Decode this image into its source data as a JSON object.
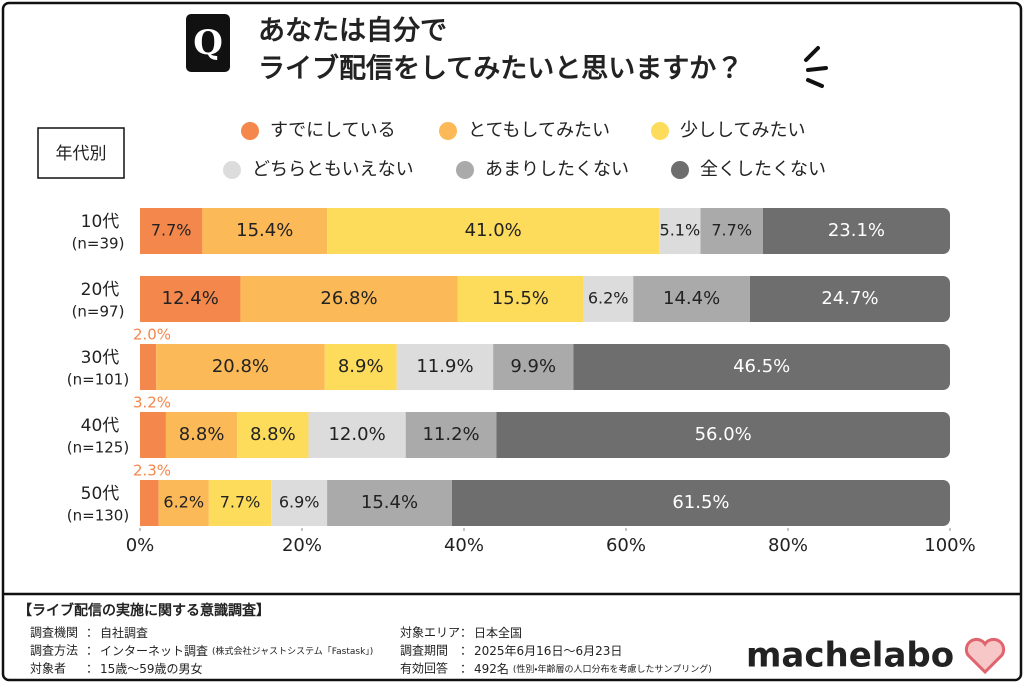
{
  "chart_data": {
    "type": "stacked-bar-horizontal",
    "question_mark": "Q",
    "title_lines": [
      "あなたは自分で",
      "ライブ配信をしてみたいと思いますか？"
    ],
    "group_label": "年代別",
    "categories": [
      "10代",
      "20代",
      "30代",
      "40代",
      "50代"
    ],
    "sample_sizes": [
      "(n=39)",
      "(n=97)",
      "(n=101)",
      "(n=125)",
      "(n=130)"
    ],
    "xlim": [
      0,
      100
    ],
    "xticks": [
      {
        "value": 0,
        "label": "0%"
      },
      {
        "value": 20,
        "label": "20%"
      },
      {
        "value": 40,
        "label": "40%"
      },
      {
        "value": 60,
        "label": "60%"
      },
      {
        "value": 80,
        "label": "80%"
      },
      {
        "value": 100,
        "label": "100%"
      }
    ],
    "series": [
      {
        "name": "すでにしている",
        "color": "#f4874b",
        "values": [
          7.7,
          12.4,
          2.0,
          3.2,
          2.3
        ],
        "value_labels": [
          "7.7%",
          "12.4%",
          "2.0%",
          "3.2%",
          "2.3%"
        ]
      },
      {
        "name": "とてもしてみたい",
        "color": "#fbb957",
        "values": [
          15.4,
          26.8,
          20.8,
          8.8,
          6.2
        ],
        "value_labels": [
          "15.4%",
          "26.8%",
          "20.8%",
          "8.8%",
          "6.2%"
        ]
      },
      {
        "name": "少ししてみたい",
        "color": "#fddc5c",
        "values": [
          41.0,
          15.5,
          8.9,
          8.8,
          7.7
        ],
        "value_labels": [
          "41.0%",
          "15.5%",
          "8.9%",
          "8.8%",
          "7.7%"
        ]
      },
      {
        "name": "どちらともいえない",
        "color": "#dcdcdc",
        "values": [
          5.1,
          6.2,
          11.9,
          12.0,
          6.9
        ],
        "value_labels": [
          "5.1%",
          "6.2%",
          "11.9%",
          "12.0%",
          "6.9%"
        ]
      },
      {
        "name": "あまりしたくない",
        "color": "#aaaaaa",
        "values": [
          7.7,
          14.4,
          9.9,
          11.2,
          15.4
        ],
        "value_labels": [
          "7.7%",
          "14.4%",
          "9.9%",
          "11.2%",
          "15.4%"
        ]
      },
      {
        "name": "全くしたくない",
        "color": "#6e6e6e",
        "values": [
          23.1,
          24.7,
          46.5,
          56.0,
          61.5
        ],
        "value_labels": [
          "23.1%",
          "24.7%",
          "46.5%",
          "56.0%",
          "61.5%"
        ]
      }
    ]
  },
  "footer": {
    "title": "【ライブ配信の実施に関する意識調査】",
    "separator": "：",
    "items": [
      {
        "label": "調査機関",
        "value": "自社調査"
      },
      {
        "label": "調査方法",
        "value": "インターネット調査",
        "note": "(株式会社ジャストシステム「Fastask」)"
      },
      {
        "label": "対象者",
        "value": "15歳〜59歳の男女"
      },
      {
        "label": "対象エリア",
        "value": "日本全国"
      },
      {
        "label": "調査期間",
        "value": "2025年6月16日〜6月23日"
      },
      {
        "label": "有効回答",
        "value": "492名",
        "note": "(性別・年齢層の人口分布を考慮したサンプリング)"
      }
    ],
    "logo": "machelabo"
  }
}
